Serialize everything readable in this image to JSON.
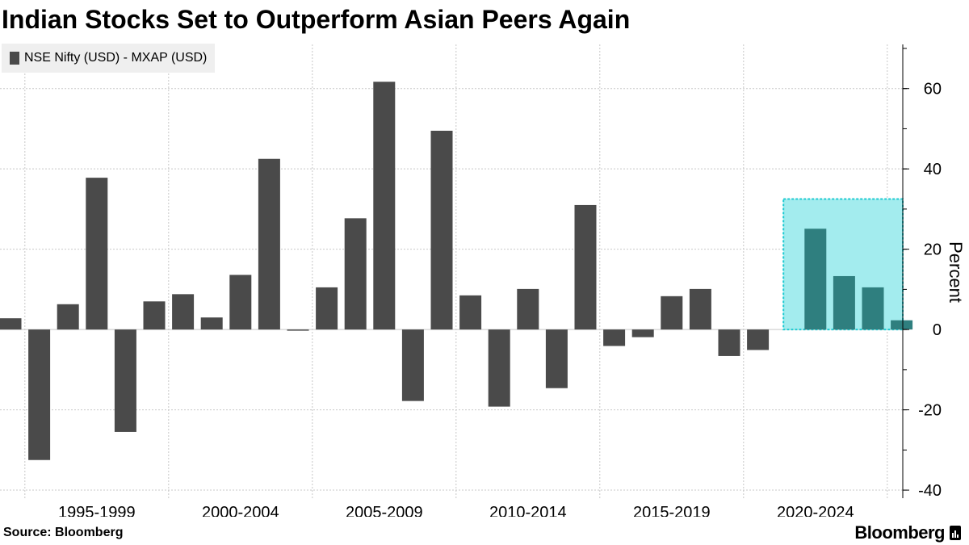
{
  "title": "Indian Stocks Set to Outperform Asian Peers Again",
  "source": "Source: Bloomberg",
  "brand": "Bloomberg",
  "colors": {
    "bar": "#4a4a4a",
    "highlight_fill": "#a3ecee",
    "highlight_stroke": "#1fcbd2",
    "highlight_bar": "#2f7f7f",
    "grid": "#c8c8c8",
    "legend_bg": "#efefef"
  },
  "chart_data": {
    "type": "bar",
    "title": "Indian Stocks Set to Outperform Asian Peers Again",
    "legend": [
      {
        "name": "NSE Nifty (USD) - MXAP (USD)",
        "color": "#4a4a4a"
      }
    ],
    "legend_position": "top-left",
    "ylabel": "Percent",
    "y_axis_side": "right",
    "ylim": [
      -42,
      71
    ],
    "yticks": [
      -40,
      -20,
      0,
      20,
      40,
      60
    ],
    "grid": true,
    "x": [
      1994,
      1995,
      1996,
      1997,
      1998,
      1999,
      2000,
      2001,
      2002,
      2003,
      2004,
      2005,
      2006,
      2007,
      2008,
      2009,
      2010,
      2011,
      2012,
      2013,
      2014,
      2015,
      2016,
      2017,
      2018,
      2019,
      2020,
      2021,
      2022,
      2023,
      2024,
      2025,
      2026,
      2027
    ],
    "values": [
      2.8,
      -32.5,
      6.3,
      37.8,
      -25.5,
      7.0,
      8.8,
      3.0,
      13.6,
      42.5,
      -0.3,
      10.5,
      27.7,
      61.7,
      -17.8,
      49.5,
      8.5,
      -19.2,
      10.1,
      -14.6,
      31.0,
      -4.1,
      -1.9,
      8.3,
      10.1,
      -6.6,
      -5.1,
      null,
      25.1,
      13.3,
      10.5,
      2.3,
      null,
      null
    ],
    "highlight": {
      "x_start": 2021,
      "x_end": 2025,
      "y_top": 32.5,
      "y_bottom": 0,
      "color": "#a3ecee"
    },
    "x_groups": [
      {
        "label": "1995-1999",
        "start": 1995,
        "end": 1999
      },
      {
        "label": "2000-2004",
        "start": 2000,
        "end": 2004
      },
      {
        "label": "2005-2009",
        "start": 2005,
        "end": 2009
      },
      {
        "label": "2010-2014",
        "start": 2010,
        "end": 2014
      },
      {
        "label": "2015-2019",
        "start": 2015,
        "end": 2019
      },
      {
        "label": "2020-2024",
        "start": 2020,
        "end": 2024
      }
    ],
    "vertical_gridlines_at": [
      1994.5,
      1999.5,
      2004.5,
      2009.5,
      2014.5,
      2019.5,
      2024.5
    ]
  }
}
